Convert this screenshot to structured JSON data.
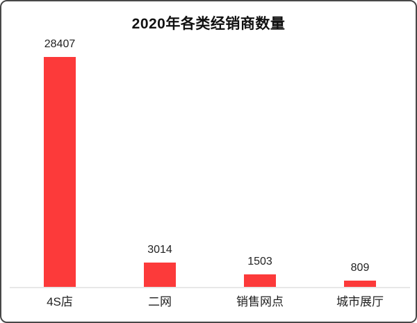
{
  "chart_data": {
    "type": "bar",
    "title": "2020年各类经销商数量",
    "categories": [
      "4S店",
      "二网",
      "销售网点",
      "城市展厅"
    ],
    "values": [
      28407,
      3014,
      1503,
      809
    ],
    "value_labels_shown": true,
    "bar_color": "#fc3a3a",
    "ylim": [
      0,
      30000
    ],
    "grid": false,
    "legend": false,
    "xlabel": "",
    "ylabel": "",
    "axis_line_color": "#e7e7e7",
    "frame_border_color": "#474747"
  }
}
